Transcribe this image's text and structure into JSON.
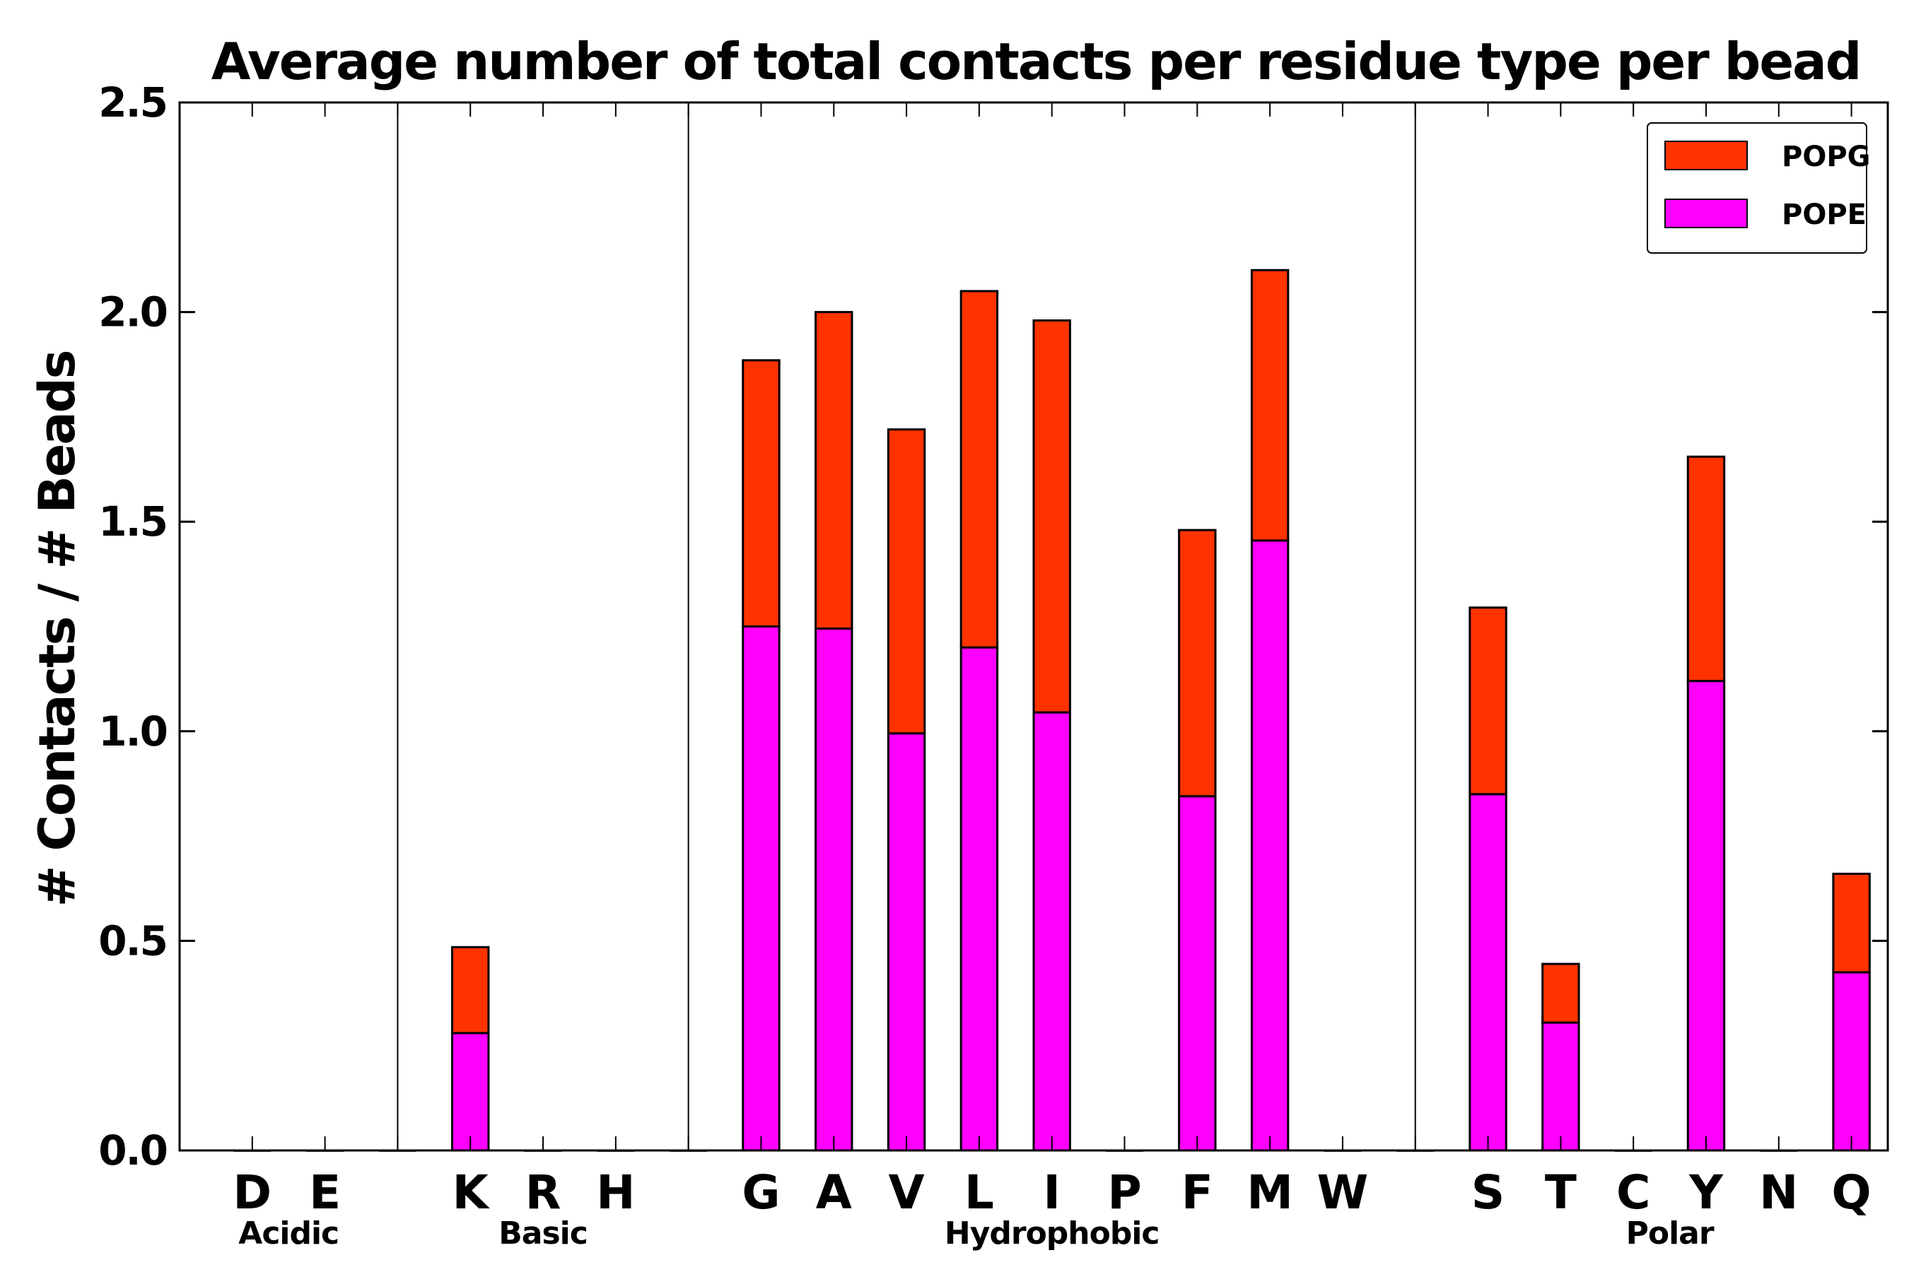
{
  "chart_data": {
    "type": "bar",
    "stacked": true,
    "title": "Average number of total contacts per residue type per bead",
    "xlabel": "",
    "ylabel": "# Contacts / # Beads",
    "ylim": [
      0.0,
      2.5
    ],
    "yticks": [
      "0.0",
      "0.5",
      "1.0",
      "1.5",
      "2.0",
      "2.5"
    ],
    "categories": [
      "D",
      "E",
      "",
      "K",
      "R",
      "H",
      "",
      "G",
      "A",
      "V",
      "L",
      "I",
      "P",
      "F",
      "M",
      "W",
      "",
      "S",
      "T",
      "C",
      "Y",
      "N",
      "Q"
    ],
    "series": [
      {
        "name": "POPE",
        "color": "#ff00ff",
        "values": [
          0,
          0,
          0,
          0.28,
          0,
          0,
          0,
          1.25,
          1.245,
          0.995,
          1.2,
          1.045,
          0,
          0.845,
          1.455,
          0,
          0,
          0.85,
          0.305,
          0,
          1.12,
          0,
          0.425
        ]
      },
      {
        "name": "POPG",
        "color": "#ff3300",
        "values": [
          0,
          0,
          0,
          0.205,
          0,
          0,
          0,
          0.635,
          0.755,
          0.725,
          0.85,
          0.935,
          0,
          0.635,
          0.645,
          0,
          0,
          0.445,
          0.14,
          0,
          0.535,
          0,
          0.235
        ]
      }
    ],
    "groups": [
      {
        "label": "Acidic",
        "start": 0,
        "end": 1
      },
      {
        "label": "Basic",
        "start": 3,
        "end": 5
      },
      {
        "label": "Hydrophobic",
        "start": 7,
        "end": 15
      },
      {
        "label": "Polar",
        "start": 17,
        "end": 22
      }
    ],
    "separators_after_index": [
      2,
      6,
      16
    ],
    "legend": {
      "position": "top-right",
      "entries": [
        "POPG",
        "POPE"
      ]
    },
    "grid": false
  }
}
